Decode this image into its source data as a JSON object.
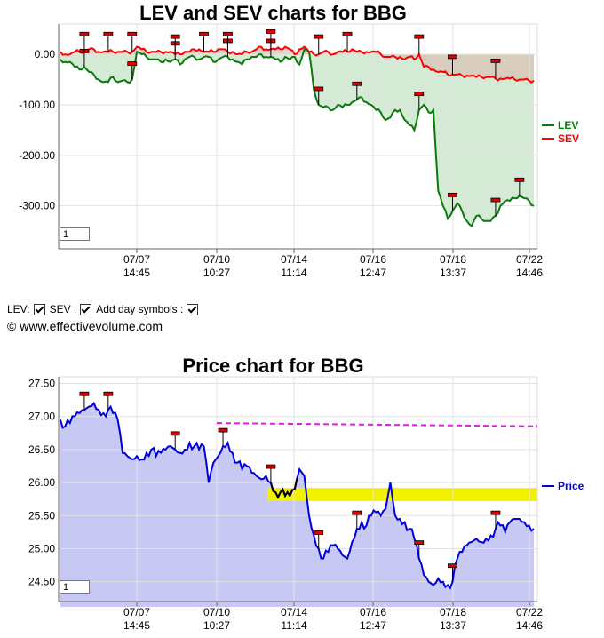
{
  "top_chart": {
    "title": "LEV and SEV charts for BBG",
    "zoom_value": "1"
  },
  "controls": {
    "lev_label": "LEV:",
    "sev_label": "SEV :",
    "day_symbols_label": "Add day symbols :",
    "lev_checked": true,
    "sev_checked": true,
    "day_symbols_checked": true
  },
  "copyright": "© www.effectivevolume.com",
  "bottom_chart": {
    "title": "Price chart for BBG",
    "zoom_value": "1"
  },
  "colors": {
    "lev": "#0a7a0a",
    "sev": "#ff0000",
    "price": "#0000dd",
    "lev_fill": "#cfe8cf",
    "sev_fill": "#d9c2b8",
    "price_fill": "#c8c8f4",
    "band": "#f2f200",
    "dashed": "#e020e0",
    "marker": "#dd0000"
  },
  "chart_data": [
    {
      "type": "line",
      "title": "LEV and SEV charts for BBG",
      "x_ticks": [
        {
          "date": "07/07",
          "time": "14:45"
        },
        {
          "date": "07/10",
          "time": "10:27"
        },
        {
          "date": "07/14",
          "time": "11:14"
        },
        {
          "date": "07/16",
          "time": "12:47"
        },
        {
          "date": "07/18",
          "time": "13:37"
        },
        {
          "date": "07/22",
          "time": "14:46"
        }
      ],
      "y_ticks": [
        "0.00",
        "-100.00",
        "-200.00",
        "-300.00"
      ],
      "ylim": [
        -385,
        60
      ],
      "legend_position": "right",
      "series": [
        {
          "name": "LEV",
          "values": [
            -10,
            -15,
            -15,
            -25,
            -30,
            -25,
            -35,
            -40,
            -50,
            -55,
            -55,
            -45,
            -55,
            -52,
            -55,
            -50,
            5,
            0,
            -5,
            -10,
            -10,
            -15,
            -10,
            -15,
            -10,
            -20,
            -10,
            -5,
            -5,
            -10,
            -5,
            -5,
            -15,
            -10,
            -5,
            -5,
            -10,
            -15,
            -20,
            -10,
            -5,
            -5,
            0,
            -5,
            -5,
            -10,
            -15,
            -5,
            -10,
            -5,
            -20,
            10,
            5,
            -70,
            -100,
            -105,
            -105,
            -110,
            -100,
            -105,
            -100,
            -95,
            -90,
            -85,
            -95,
            -100,
            -110,
            -115,
            -130,
            -125,
            -110,
            -110,
            -130,
            -140,
            -150,
            -110,
            -100,
            -115,
            -110,
            -270,
            -300,
            -325,
            -310,
            -295,
            -310,
            -330,
            -340,
            -320,
            -325,
            -330,
            -330,
            -320,
            -300,
            -290,
            -290,
            -285,
            -280,
            -285,
            -290,
            -300
          ]
        },
        {
          "name": "SEV",
          "values": [
            5,
            0,
            0,
            5,
            5,
            5,
            10,
            10,
            5,
            5,
            5,
            5,
            5,
            5,
            5,
            5,
            15,
            10,
            5,
            5,
            5,
            5,
            5,
            5,
            0,
            0,
            5,
            5,
            10,
            10,
            5,
            5,
            5,
            10,
            10,
            5,
            5,
            0,
            0,
            5,
            5,
            10,
            15,
            10,
            10,
            10,
            10,
            15,
            10,
            0,
            10,
            15,
            5,
            0,
            0,
            5,
            5,
            0,
            5,
            5,
            5,
            10,
            5,
            5,
            5,
            5,
            5,
            0,
            -5,
            -5,
            -5,
            -5,
            -10,
            -5,
            -10,
            0,
            -25,
            -25,
            -30,
            -35,
            -35,
            -40,
            -40,
            -40,
            -42,
            -42,
            -42,
            -45,
            -45,
            -45,
            -45,
            -48,
            -48,
            -48,
            -48,
            -50,
            -50,
            -50,
            -52,
            -52
          ]
        }
      ]
    },
    {
      "type": "area",
      "title": "Price chart for BBG",
      "x_ticks": [
        {
          "date": "07/07",
          "time": "14:45"
        },
        {
          "date": "07/10",
          "time": "10:27"
        },
        {
          "date": "07/14",
          "time": "11:14"
        },
        {
          "date": "07/16",
          "time": "12:47"
        },
        {
          "date": "07/18",
          "time": "13:37"
        },
        {
          "date": "07/22",
          "time": "14:46"
        }
      ],
      "y_ticks": [
        "27.50",
        "27.00",
        "26.50",
        "26.00",
        "25.50",
        "25.00",
        "24.50"
      ],
      "ylim": [
        24.2,
        27.6
      ],
      "legend_position": "right",
      "series": [
        {
          "name": "Price",
          "values": [
            26.95,
            26.85,
            26.9,
            27.0,
            27.05,
            27.1,
            27.15,
            27.2,
            27.1,
            27.05,
            27.1,
            27.05,
            26.95,
            26.45,
            26.4,
            26.35,
            26.4,
            26.35,
            26.45,
            26.5,
            26.4,
            26.45,
            26.5,
            26.55,
            26.5,
            26.45,
            26.5,
            26.6,
            26.55,
            26.5,
            26.55,
            26.0,
            26.3,
            26.4,
            26.55,
            26.6,
            26.45,
            26.3,
            26.2,
            26.25,
            26.15,
            26.1,
            26.05,
            26.1,
            26.0,
            25.85,
            25.85,
            25.8,
            25.8,
            25.9,
            26.2,
            26.1,
            25.5,
            25.2,
            25.0,
            24.85,
            24.95,
            25.05,
            25.0,
            24.9,
            24.85,
            25.1,
            25.3,
            25.4,
            25.35,
            25.5,
            25.55,
            25.5,
            25.6,
            26.0,
            25.5,
            25.45,
            25.4,
            25.3,
            25.15,
            24.85,
            24.6,
            24.5,
            24.45,
            24.55,
            24.5,
            24.45,
            24.5,
            24.85,
            24.95,
            25.05,
            25.1,
            25.15,
            25.1,
            25.15,
            25.2,
            25.3,
            25.35,
            25.25,
            25.4,
            25.45,
            25.45,
            25.4,
            25.35,
            25.3
          ]
        }
      ],
      "reference_line": {
        "style": "dashed",
        "y_start": 26.9,
        "y_end": 26.85
      },
      "highlight_band": {
        "y_low": 25.72,
        "y_high": 25.92
      }
    }
  ]
}
